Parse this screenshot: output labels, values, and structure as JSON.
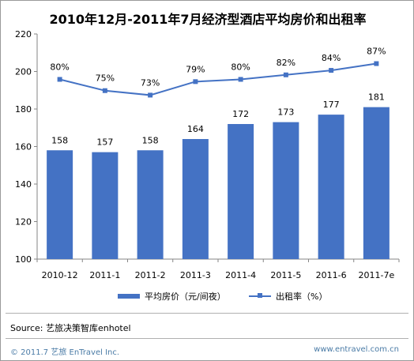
{
  "chart_data": {
    "type": "bar",
    "title": "2010年12月-2011年7月经济型酒店平均房价和出租率",
    "categories": [
      "2010-12",
      "2011-1",
      "2011-2",
      "2011-3",
      "2011-4",
      "2011-5",
      "2011-6",
      "2011-7e"
    ],
    "series": [
      {
        "name": "平均房价（元/间夜）",
        "type": "bar",
        "values": [
          158,
          157,
          158,
          164,
          172,
          173,
          177,
          181
        ],
        "labels": [
          "158",
          "157",
          "158",
          "164",
          "172",
          "173",
          "177",
          "181"
        ]
      },
      {
        "name": "出租率（%）",
        "type": "line",
        "values": [
          80,
          75,
          73,
          79,
          80,
          82,
          84,
          87
        ],
        "plotted_on_left_axis": [
          195.8,
          189.8,
          187.4,
          194.6,
          195.8,
          198.2,
          200.6,
          204.2
        ],
        "labels": [
          "80%",
          "75%",
          "73%",
          "79%",
          "80%",
          "82%",
          "84%",
          "87%"
        ]
      }
    ],
    "ylim": [
      100,
      220
    ],
    "yticks": [
      "100",
      "120",
      "140",
      "160",
      "180",
      "200",
      "220"
    ],
    "grid": false,
    "legend": "bottom",
    "colors": {
      "bar": "#4472c4",
      "line": "#4472c4"
    }
  },
  "footer": {
    "source": "Source:  艺旅决策智库enhotel",
    "copyright": "© 2011.7 艺旅 EnTravel Inc.",
    "website": "www.entravel.com.cn"
  }
}
